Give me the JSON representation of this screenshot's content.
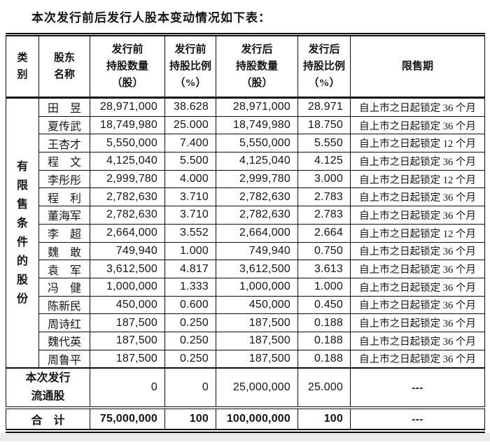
{
  "title": "本次发行前后发行人股本变动情况如下表：",
  "table": {
    "headers": [
      "类\n别",
      "股东\n名称",
      "发行前\n持股数量\n（股）",
      "发行前\n持股比例\n（%）",
      "发行后\n持股数量\n（股）",
      "发行后\n持股比例\n（%）",
      "限售期"
    ],
    "category_label": "有限售条件的股份",
    "rows": [
      {
        "name": "田昱",
        "pre_qty": "28,971,000",
        "pre_pct": "38.628",
        "post_qty": "28,971,000",
        "post_pct": "28.971",
        "lockup": "自上市之日起锁定 36 个月"
      },
      {
        "name": "夏传武",
        "pre_qty": "18,749,980",
        "pre_pct": "25.000",
        "post_qty": "18,749,980",
        "post_pct": "18.750",
        "lockup": "自上市之日起锁定 36 个月"
      },
      {
        "name": "王杏才",
        "pre_qty": "5,550,000",
        "pre_pct": "7.400",
        "post_qty": "5,550,000",
        "post_pct": "5.550",
        "lockup": "自上市之日起锁定 12 个月"
      },
      {
        "name": "程文",
        "pre_qty": "4,125,040",
        "pre_pct": "5.500",
        "post_qty": "4,125,040",
        "post_pct": "4.125",
        "lockup": "自上市之日起锁定 36 个月"
      },
      {
        "name": "李彤彤",
        "pre_qty": "2,999,780",
        "pre_pct": "4.000",
        "post_qty": "2,999,780",
        "post_pct": "3.000",
        "lockup": "自上市之日起锁定 12 个月"
      },
      {
        "name": "程利",
        "pre_qty": "2,782,630",
        "pre_pct": "3.710",
        "post_qty": "2,782,630",
        "post_pct": "2.783",
        "lockup": "自上市之日起锁定 36 个月"
      },
      {
        "name": "董海军",
        "pre_qty": "2,782,630",
        "pre_pct": "3.710",
        "post_qty": "2,782,630",
        "post_pct": "2.783",
        "lockup": "自上市之日起锁定 36 个月"
      },
      {
        "name": "李超",
        "pre_qty": "2,664,000",
        "pre_pct": "3.552",
        "post_qty": "2,664,000",
        "post_pct": "2.664",
        "lockup": "自上市之日起锁定 12 个月"
      },
      {
        "name": "魏敢",
        "pre_qty": "749,940",
        "pre_pct": "1.000",
        "post_qty": "749,940",
        "post_pct": "0.750",
        "lockup": "自上市之日起锁定 36 个月"
      },
      {
        "name": "袁军",
        "pre_qty": "3,612,500",
        "pre_pct": "4.817",
        "post_qty": "3,612,500",
        "post_pct": "3.613",
        "lockup": "自上市之日起锁定 36 个月"
      },
      {
        "name": "冯健",
        "pre_qty": "1,000,000",
        "pre_pct": "1.333",
        "post_qty": "1,000,000",
        "post_pct": "1.000",
        "lockup": "自上市之日起锁定 36 个月"
      },
      {
        "name": "陈新民",
        "pre_qty": "450,000",
        "pre_pct": "0.600",
        "post_qty": "450,000",
        "post_pct": "0.450",
        "lockup": "自上市之日起锁定 36 个月"
      },
      {
        "name": "周诗红",
        "pre_qty": "187,500",
        "pre_pct": "0.250",
        "post_qty": "187,500",
        "post_pct": "0.188",
        "lockup": "自上市之日起锁定 36 个月"
      },
      {
        "name": "魏代英",
        "pre_qty": "187,500",
        "pre_pct": "0.250",
        "post_qty": "187,500",
        "post_pct": "0.188",
        "lockup": "自上市之日起锁定 36 个月"
      },
      {
        "name": "周鲁平",
        "pre_qty": "187,500",
        "pre_pct": "0.250",
        "post_qty": "187,500",
        "post_pct": "0.188",
        "lockup": "自上市之日起锁定 36 个月"
      }
    ],
    "new_issue_row": {
      "label": "本次发行\n流通股",
      "pre_qty": "0",
      "pre_pct": "0",
      "post_qty": "25,000,000",
      "post_pct": "25.000",
      "lockup": "---"
    },
    "total_row": {
      "label": "合　计",
      "pre_qty": "75,000,000",
      "pre_pct": "100",
      "post_qty": "100,000,000",
      "post_pct": "100",
      "lockup": "---"
    }
  }
}
